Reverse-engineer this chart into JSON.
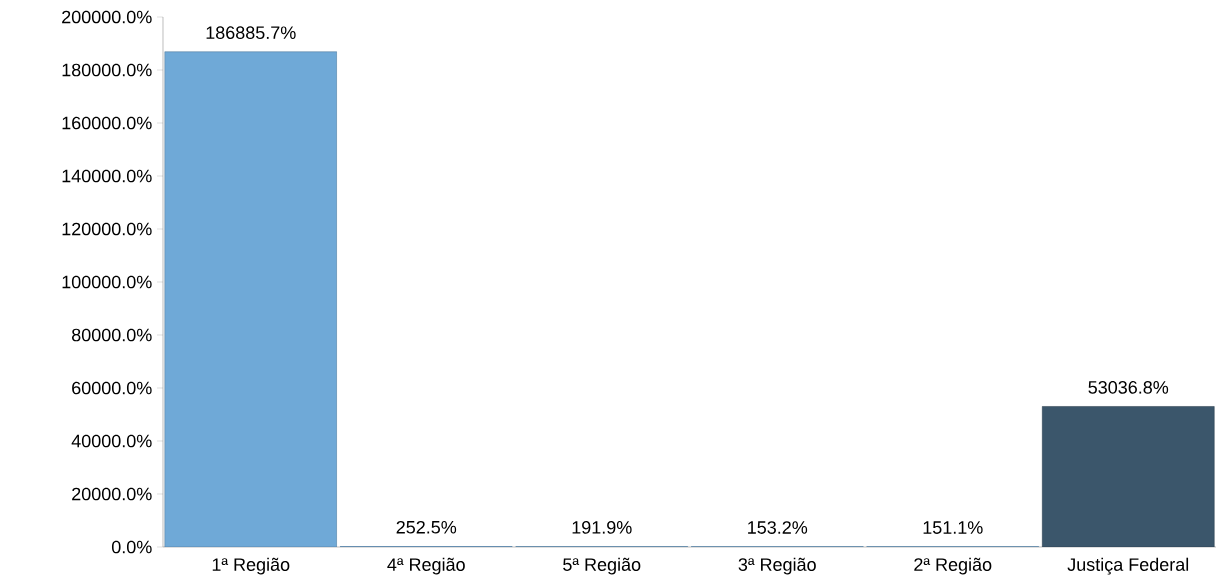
{
  "chart_data": {
    "type": "bar",
    "categories": [
      "1ª Região",
      "4ª Região",
      "5ª Região",
      "3ª Região",
      "2ª Região",
      "Justiça Federal"
    ],
    "values": [
      186885.7,
      252.5,
      191.9,
      153.2,
      151.1,
      53036.8
    ],
    "colors": [
      "#6fa9d7",
      "#6fa9d7",
      "#6fa9d7",
      "#6fa9d7",
      "#6fa9d7",
      "#3b566b"
    ],
    "value_labels": [
      "186885.7%",
      "252.5%",
      "191.9%",
      "153.2%",
      "151.1%",
      "53036.8%"
    ],
    "ylim": [
      0,
      200000
    ],
    "yticks": [
      {
        "value": 0,
        "label": "0.0%"
      },
      {
        "value": 20000,
        "label": "20000.0%"
      },
      {
        "value": 40000,
        "label": "40000.0%"
      },
      {
        "value": 60000,
        "label": "60000.0%"
      },
      {
        "value": 80000,
        "label": "80000.0%"
      },
      {
        "value": 100000,
        "label": "100000.0%"
      },
      {
        "value": 120000,
        "label": "120000.0%"
      },
      {
        "value": 140000,
        "label": "140000.0%"
      },
      {
        "value": 160000,
        "label": "160000.0%"
      },
      {
        "value": 180000,
        "label": "180000.0%"
      },
      {
        "value": 200000,
        "label": "200000.0%"
      }
    ],
    "grid": false
  }
}
